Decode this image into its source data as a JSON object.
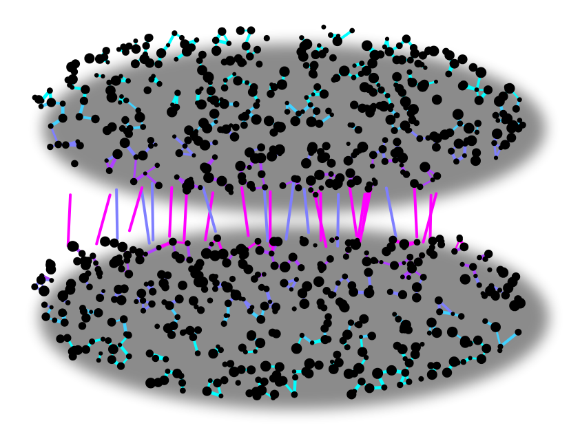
{
  "figure": {
    "kind": "brain network graph (axial view)",
    "background": "#ffffff",
    "node_color": "#000000",
    "edge_palette": [
      "#00ffff",
      "#40d0ff",
      "#7f7fff",
      "#b040ff",
      "#ff00ff"
    ],
    "shadow_color": "#000000",
    "hemispheres": [
      "left",
      "right"
    ]
  }
}
